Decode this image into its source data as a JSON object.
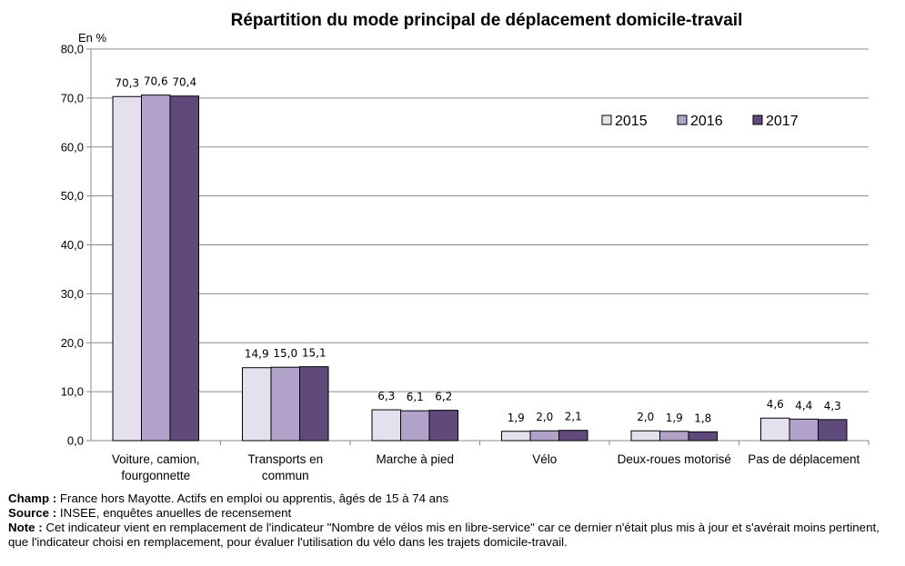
{
  "chart_data": {
    "type": "bar",
    "title": "Répartition du mode principal de déplacement domicile-travail",
    "ylabel": "En %",
    "xlabel": "",
    "ylim": [
      0,
      80
    ],
    "ytick_step": 10,
    "ytick_labels": [
      "0,0",
      "10,0",
      "20,0",
      "30,0",
      "40,0",
      "50,0",
      "60,0",
      "70,0",
      "80,0"
    ],
    "grid": true,
    "legend_position": "top-right",
    "categories": [
      [
        "Voiture, camion,",
        "fourgonnette"
      ],
      [
        "Transports en",
        "commun"
      ],
      [
        "Marche à pied"
      ],
      [
        "Vélo"
      ],
      [
        "Deux-roues motorisé"
      ],
      [
        "Pas de déplacement"
      ]
    ],
    "series": [
      {
        "name": "2015",
        "color": "#e5e0ee",
        "values": [
          70.3,
          14.9,
          6.3,
          1.9,
          2.0,
          4.6
        ],
        "labels": [
          "70,3",
          "14,9",
          "6,3",
          "1,9",
          "2,0",
          "4,6"
        ]
      },
      {
        "name": "2016",
        "color": "#b1a2c9",
        "values": [
          70.6,
          15.0,
          6.1,
          2.0,
          1.9,
          4.4
        ],
        "labels": [
          "70,6",
          "15,0",
          "6,1",
          "2,0",
          "1,9",
          "4,4"
        ]
      },
      {
        "name": "2017",
        "color": "#5f4a7b",
        "values": [
          70.4,
          15.1,
          6.2,
          2.1,
          1.8,
          4.3
        ],
        "labels": [
          "70,4",
          "15,1",
          "6,2",
          "2,1",
          "1,8",
          "4,3"
        ]
      }
    ]
  },
  "notes": {
    "champ_label": "Champ :",
    "champ_text": " France hors Mayotte. Actifs en emploi ou apprentis, âgés de 15 à 74 ans",
    "source_label": "Source :",
    "source_text": " INSEE, enquêtes anuelles de recensement",
    "note_label": "Note :",
    "note_text": " Cet indicateur vient en remplacement de l'indicateur \"Nombre de vélos mis en libre-service\" car ce dernier n'était plus mis à jour et s'avérait moins pertinent, que l'indicateur choisi en remplacement, pour évaluer l'utilisation du vélo dans les trajets domicile-travail."
  }
}
